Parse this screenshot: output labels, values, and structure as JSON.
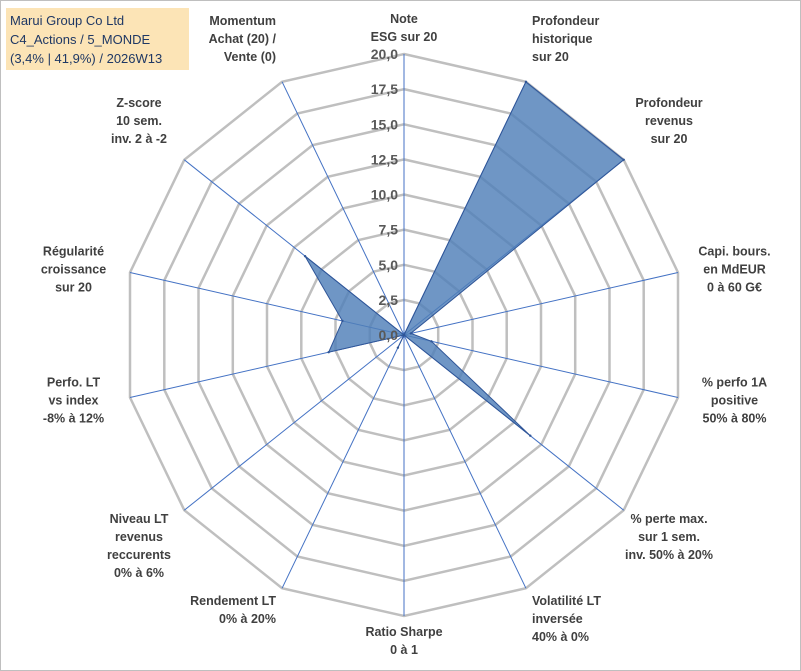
{
  "title": {
    "line1": "Marui Group Co Ltd",
    "line2": "C4_Actions / 5_MONDE",
    "line3": "(3,4% | 41,9%) / 2026W13"
  },
  "colors": {
    "grid": "#bfbfbf",
    "spoke": "#4472c4",
    "fill": "#4f7fb8",
    "stroke": "#2f5597"
  },
  "chart_data": {
    "type": "radar",
    "rmin": 0,
    "rmax": 20,
    "ticks": [
      "0,0",
      "2,5",
      "5,0",
      "7,5",
      "10,0",
      "12,5",
      "15,0",
      "17,5",
      "20,0"
    ],
    "grid": true,
    "legend": "none",
    "axes": [
      {
        "label": [
          "Note",
          "ESG sur 20"
        ],
        "value": 0
      },
      {
        "label": [
          "Profondeur",
          "historique",
          "sur 20"
        ],
        "value": 20
      },
      {
        "label": [
          "Profondeur",
          "revenus",
          "sur 20"
        ],
        "value": 20
      },
      {
        "label": [
          "Capi. bours.",
          "en MdEUR",
          "0 à 60 G€"
        ],
        "value": 0.5
      },
      {
        "label": [
          "% perfo 1A",
          "positive",
          "50% à 80%"
        ],
        "value": 2
      },
      {
        "label": [
          "% perte max.",
          "sur 1 sem.",
          "inv. 50% à 20%"
        ],
        "value": 11.5
      },
      {
        "label": [
          "Volatilité LT",
          "inversée",
          "40% à 0%"
        ],
        "value": 0
      },
      {
        "label": [
          "Ratio Sharpe",
          "0 à 1"
        ],
        "value": 0
      },
      {
        "label": [
          "Rendement LT",
          "0% à 20%"
        ],
        "value": 1
      },
      {
        "label": [
          "Niveau LT",
          "revenus",
          "reccurents",
          "0% à 6%"
        ],
        "value": 0
      },
      {
        "label": [
          "Perfo. LT",
          "vs index",
          "-8% à 12%"
        ],
        "value": 5.5
      },
      {
        "label": [
          "Régularité",
          "croissance",
          "sur 20"
        ],
        "value": 4.5
      },
      {
        "label": [
          "Z-score",
          "10 sem.",
          "inv. 2 à -2"
        ],
        "value": 9
      },
      {
        "label": [
          "Momentum",
          "Achat (20) /",
          "Vente (0)"
        ],
        "value": 0
      }
    ]
  }
}
